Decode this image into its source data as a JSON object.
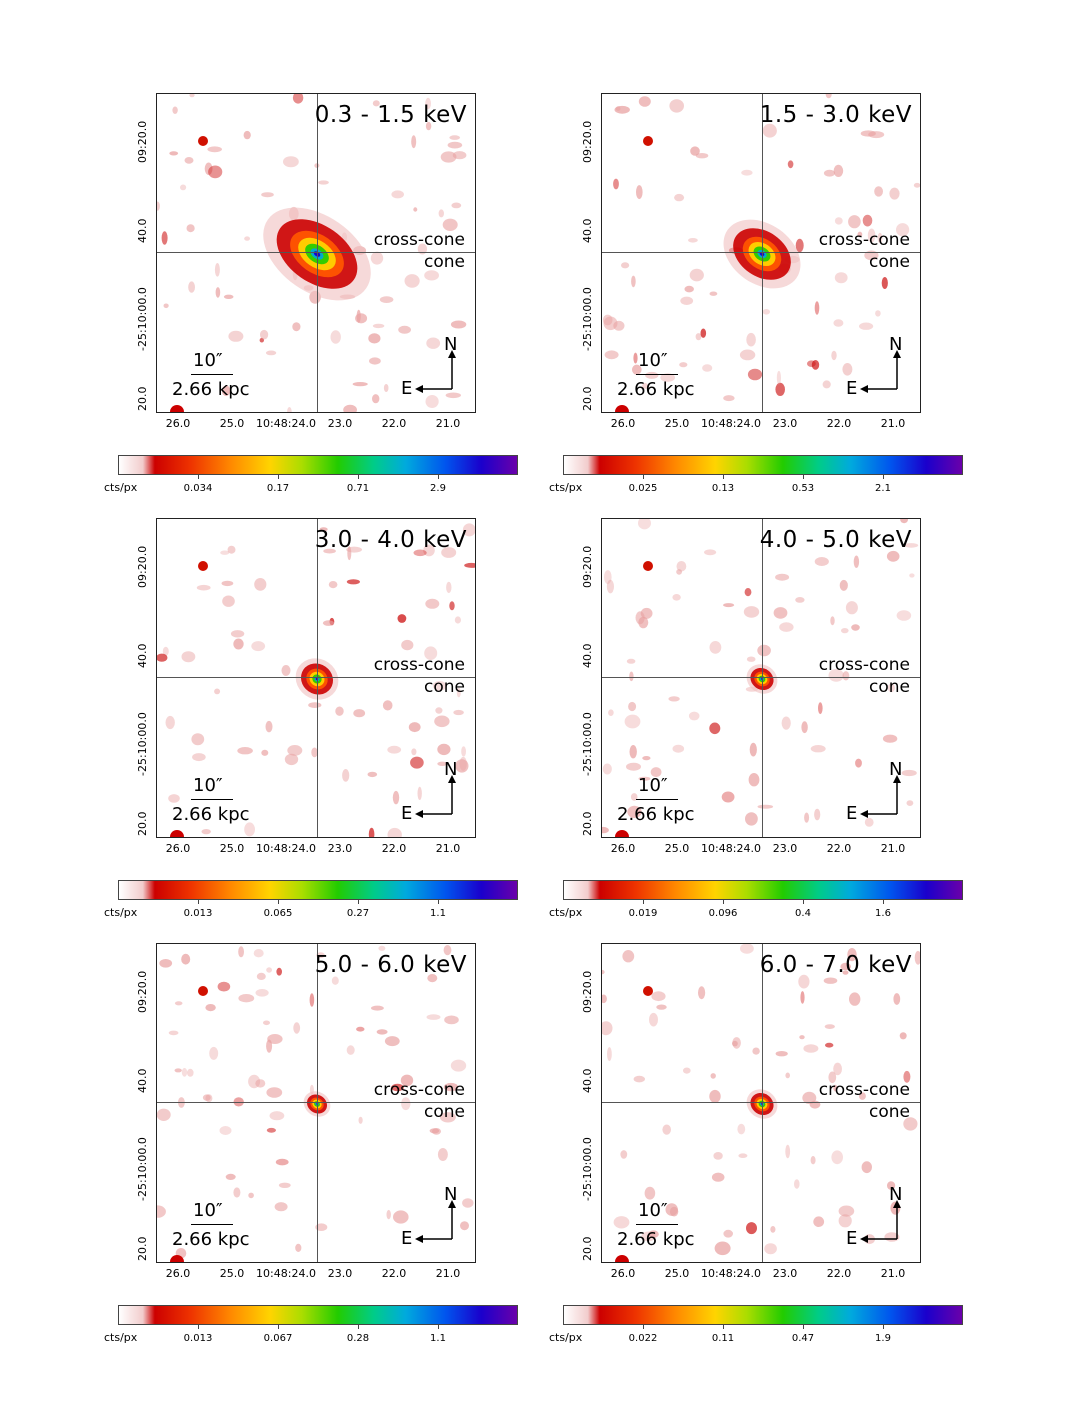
{
  "colors": {
    "frame": "#222222",
    "crosshair": "#555555",
    "hot": "#cc0000",
    "core": "#00cc88"
  },
  "common": {
    "xticks": [
      "26.0",
      "25.0",
      "10:48:24.0",
      "23.0",
      "22.0",
      "21.0"
    ],
    "yticks": [
      "09:20.0",
      "40.0",
      "-25:10:00.0",
      "20.0"
    ],
    "cross_cone_label": "cross-cone",
    "cone_label": "cone",
    "scale_arcsec": "10″",
    "scale_kpc": "2.66 kpc",
    "north": "N",
    "east": "E",
    "cbar_unit": "cts/px"
  },
  "panels": [
    {
      "energy": "0.3 - 1.5 keV",
      "cbar_ticks": [
        "0.034",
        "0.17",
        "0.71",
        "2.9"
      ]
    },
    {
      "energy": "1.5 - 3.0 keV",
      "cbar_ticks": [
        "0.025",
        "0.13",
        "0.53",
        "2.1"
      ]
    },
    {
      "energy": "3.0 - 4.0 keV",
      "cbar_ticks": [
        "0.013",
        "0.065",
        "0.27",
        "1.1"
      ]
    },
    {
      "energy": "4.0 - 5.0 keV",
      "cbar_ticks": [
        "0.019",
        "0.096",
        "0.4",
        "1.6"
      ]
    },
    {
      "energy": "5.0 - 6.0 keV",
      "cbar_ticks": [
        "0.013",
        "0.067",
        "0.28",
        "1.1"
      ]
    },
    {
      "energy": "6.0 - 7.0 keV",
      "cbar_ticks": [
        "0.022",
        "0.11",
        "0.47",
        "1.9"
      ]
    }
  ]
}
